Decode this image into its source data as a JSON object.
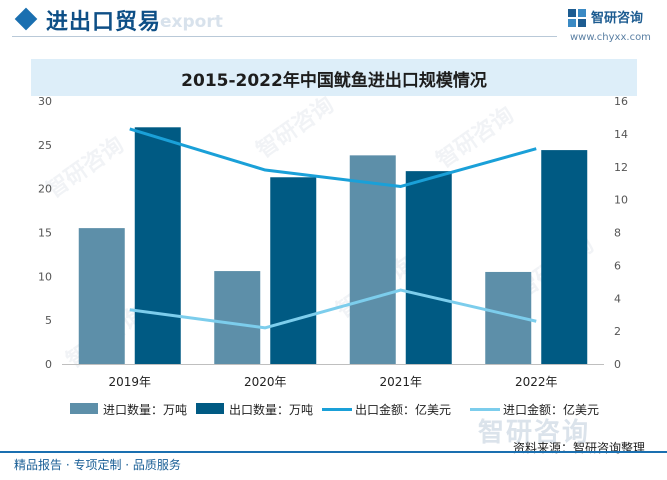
{
  "header": {
    "title": "进出口贸易",
    "watermark": "export"
  },
  "logo": {
    "name": "智研咨询",
    "url": "www.chyxx.com"
  },
  "watermark_text": "智研咨询",
  "chart_data": {
    "type": "bar",
    "title": "2015-2022年中国鱿鱼进出口规模情况",
    "categories": [
      "2019年",
      "2020年",
      "2021年",
      "2022年"
    ],
    "series": [
      {
        "name": "进口数量：万吨",
        "kind": "bar",
        "axis": "left",
        "color": "#5d8fa9",
        "values": [
          15.5,
          10.6,
          23.8,
          10.5
        ]
      },
      {
        "name": "出口数量：万吨",
        "kind": "bar",
        "axis": "left",
        "color": "#005a83",
        "values": [
          27.0,
          21.3,
          22.0,
          24.4
        ]
      },
      {
        "name": "出口金额：亿美元",
        "kind": "line",
        "axis": "right",
        "color": "#1aa0d8",
        "values": [
          14.3,
          11.8,
          10.8,
          13.1
        ]
      },
      {
        "name": "进口金额：亿美元",
        "kind": "line",
        "axis": "right",
        "color": "#7ccdec",
        "values": [
          3.3,
          2.2,
          4.5,
          2.6
        ]
      }
    ],
    "y_left": {
      "min": 0,
      "max": 30,
      "ticks": [
        0,
        5,
        10,
        15,
        20,
        25,
        30
      ]
    },
    "y_right": {
      "min": 0,
      "max": 16,
      "ticks": [
        0,
        2,
        4,
        6,
        8,
        10,
        12,
        14,
        16
      ]
    },
    "legend_position": "bottom",
    "grid": false
  },
  "source": "资料来源：智研咨询整理",
  "footer": "精品报告 · 专项定制 · 品质服务"
}
